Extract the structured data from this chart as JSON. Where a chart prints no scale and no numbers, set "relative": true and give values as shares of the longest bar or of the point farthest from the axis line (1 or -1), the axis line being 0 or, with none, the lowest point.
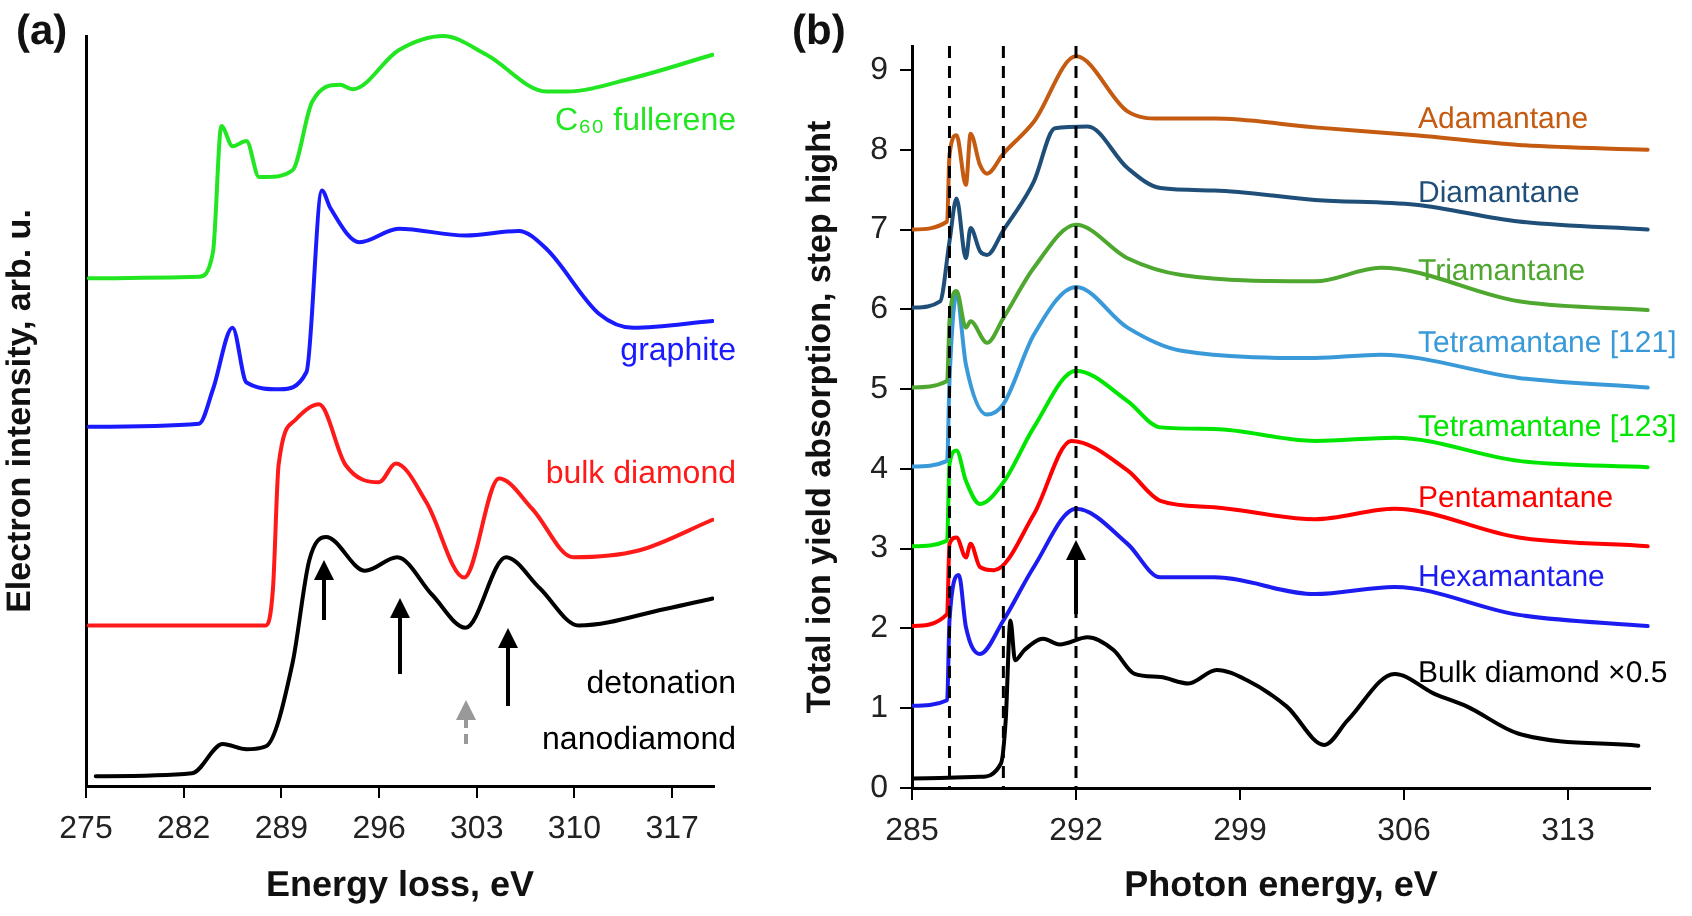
{
  "chart_data": [
    {
      "type": "line",
      "title": "(a)",
      "xlabel": "Energy loss, eV",
      "ylabel": "Electron intensity, arb. u.",
      "xlim": [
        275,
        320
      ],
      "xticks": [
        275,
        282,
        289,
        296,
        303,
        310,
        317
      ],
      "relative": true,
      "tick_labels": "x",
      "grid": false,
      "legend": false,
      "marker": "none",
      "line_style": "solid",
      "series": [
        {
          "name": "C₆₀ fullerene",
          "color": "#22e622",
          "x": [
            275.2,
            283.1,
            284.1,
            284.7,
            285.5,
            286.5,
            287.4,
            287.9,
            289.8,
            291.2,
            293.2,
            294.1,
            297.4,
            300.6,
            303.7,
            308.0,
            309.4,
            314.2,
            319.9
          ],
          "values": [
            0.677,
            0.679,
            0.712,
            0.88,
            0.853,
            0.86,
            0.812,
            0.812,
            0.821,
            0.912,
            0.935,
            0.929,
            0.981,
            1.0,
            0.975,
            0.926,
            0.926,
            0.944,
            0.975
          ]
        },
        {
          "name": "graphite",
          "color": "#1a1aff",
          "x": [
            275.2,
            283.1,
            284.1,
            285.5,
            286.5,
            288.9,
            290.8,
            291.9,
            292.5,
            294.6,
            297.4,
            302.2,
            306.0,
            308.0,
            311.8,
            314.2,
            319.9
          ],
          "values": [
            0.479,
            0.483,
            0.529,
            0.611,
            0.538,
            0.529,
            0.552,
            0.794,
            0.771,
            0.725,
            0.743,
            0.734,
            0.74,
            0.716,
            0.629,
            0.611,
            0.62
          ]
        },
        {
          "name": "bulk diamond",
          "color": "#ff1a1a",
          "x": [
            275.2,
            287.9,
            288.4,
            288.8,
            290.0,
            291.7,
            293.6,
            296.0,
            297.2,
            299.4,
            302.1,
            304.6,
            307.0,
            309.9,
            314.6,
            319.9
          ],
          "values": [
            0.214,
            0.214,
            0.264,
            0.428,
            0.488,
            0.509,
            0.428,
            0.405,
            0.43,
            0.378,
            0.278,
            0.41,
            0.369,
            0.305,
            0.314,
            0.355
          ]
        },
        {
          "name": "detonation nanodiamond",
          "color": "#000000",
          "x": [
            275.7,
            282.6,
            284.8,
            286.5,
            287.9,
            289.8,
            291.0,
            292.2,
            295.0,
            297.3,
            299.8,
            302.2,
            305.1,
            307.5,
            310.3,
            316.5,
            319.9
          ],
          "values": [
            0.013,
            0.017,
            0.056,
            0.049,
            0.053,
            0.164,
            0.301,
            0.332,
            0.287,
            0.305,
            0.255,
            0.211,
            0.305,
            0.264,
            0.214,
            0.236,
            0.25
          ]
        }
      ]
    },
    {
      "type": "line",
      "title": "(b)",
      "xlabel": "Photon energy, eV",
      "ylabel": "Total ion yield absorption, step hight",
      "xlim": [
        285,
        316.5
      ],
      "ylim": [
        0,
        9.3
      ],
      "xticks": [
        285,
        292,
        299,
        306,
        313
      ],
      "yticks": [
        0,
        1,
        2,
        3,
        4,
        5,
        6,
        7,
        8,
        9
      ],
      "grid": false,
      "legend": false,
      "marker": "none",
      "line_style": "solid",
      "ref_lines": [
        {
          "axis": "x",
          "value": 286.6,
          "color": "#000000",
          "line_style": "dashed"
        },
        {
          "axis": "x",
          "value": 288.9,
          "color": "#000000",
          "line_style": "dashed"
        },
        {
          "axis": "x",
          "value": 292,
          "color": "#000000",
          "line_style": "dashed"
        }
      ],
      "series": [
        {
          "name": "Adamantane",
          "color": "#c55a11",
          "x": [
            285.0,
            286.5,
            286.6,
            286.9,
            287.3,
            287.5,
            287.9,
            288.2,
            288.9,
            290.2,
            292.0,
            294.2,
            295.6,
            297.9,
            302.2,
            306.5,
            310.9,
            316.4
          ],
          "values": [
            7.0,
            7.1,
            7.93,
            8.18,
            7.56,
            8.2,
            7.81,
            7.7,
            7.95,
            8.35,
            9.17,
            8.48,
            8.39,
            8.39,
            8.28,
            8.18,
            8.06,
            8.0
          ]
        },
        {
          "name": "Diamantane",
          "color": "#1f4e79",
          "x": [
            285.0,
            286.2,
            286.6,
            286.9,
            287.3,
            287.5,
            287.9,
            288.2,
            288.9,
            290.2,
            291.1,
            292.5,
            294.2,
            295.6,
            297.9,
            302.2,
            306.5,
            310.9,
            316.4
          ],
          "values": [
            6.02,
            6.1,
            6.85,
            7.39,
            6.64,
            7.02,
            6.73,
            6.68,
            6.99,
            7.6,
            8.27,
            8.29,
            7.77,
            7.52,
            7.49,
            7.37,
            7.31,
            7.1,
            7.0
          ]
        },
        {
          "name": "Triamantane",
          "color": "#4ea72e",
          "x": [
            285.0,
            286.5,
            286.6,
            286.9,
            287.3,
            287.5,
            288.2,
            288.9,
            290.2,
            292.0,
            294.2,
            296.5,
            302.2,
            305.0,
            310.9,
            316.4
          ],
          "values": [
            5.02,
            5.1,
            5.85,
            6.23,
            5.77,
            5.85,
            5.58,
            5.89,
            6.52,
            7.06,
            6.64,
            6.43,
            6.35,
            6.52,
            6.1,
            5.99
          ]
        },
        {
          "name": "Tetramantane [121]",
          "color": "#3a9ad9",
          "x": [
            285.0,
            286.5,
            286.6,
            286.9,
            287.3,
            288.2,
            288.9,
            290.2,
            292.0,
            294.2,
            296.5,
            302.2,
            305.0,
            310.9,
            316.4
          ],
          "values": [
            4.03,
            4.1,
            5.1,
            6.18,
            5.31,
            4.68,
            4.81,
            5.68,
            6.28,
            5.77,
            5.48,
            5.39,
            5.43,
            5.14,
            5.02
          ]
        },
        {
          "name": "Tetramantane [123]",
          "color": "#00e600",
          "x": [
            285.0,
            286.5,
            286.6,
            286.9,
            287.3,
            287.9,
            288.9,
            290.2,
            292.0,
            294.2,
            295.6,
            297.9,
            302.2,
            305.6,
            310.9,
            316.4
          ],
          "values": [
            3.03,
            3.1,
            4.06,
            4.23,
            3.85,
            3.56,
            3.83,
            4.52,
            5.23,
            4.85,
            4.52,
            4.5,
            4.35,
            4.39,
            4.1,
            4.02
          ]
        },
        {
          "name": "Pentamantane",
          "color": "#ff0000",
          "x": [
            285.0,
            286.5,
            286.6,
            286.9,
            287.3,
            287.5,
            287.9,
            288.5,
            290.2,
            291.8,
            294.2,
            295.6,
            297.9,
            302.2,
            305.6,
            310.9,
            316.4
          ],
          "values": [
            2.03,
            2.18,
            3.06,
            3.14,
            2.89,
            3.06,
            2.77,
            2.73,
            3.43,
            4.35,
            3.98,
            3.6,
            3.52,
            3.37,
            3.5,
            3.14,
            3.03
          ]
        },
        {
          "name": "Hexamantane",
          "color": "#1c1cf0",
          "x": [
            285.0,
            286.5,
            286.6,
            287.0,
            287.3,
            287.9,
            288.9,
            290.2,
            292.0,
            294.2,
            295.6,
            297.9,
            302.2,
            305.6,
            310.9,
            316.4
          ],
          "values": [
            1.03,
            1.1,
            2.1,
            2.67,
            2.02,
            1.68,
            2.1,
            2.77,
            3.5,
            3.06,
            2.64,
            2.64,
            2.43,
            2.52,
            2.17,
            2.03
          ]
        },
        {
          "name": "Bulk diamond ×0.5",
          "color": "#000000",
          "x": [
            285.0,
            287.9,
            288.8,
            289.0,
            289.2,
            289.4,
            289.8,
            290.6,
            291.3,
            292.5,
            293.6,
            294.5,
            295.6,
            296.8,
            298.0,
            299.3,
            301.0,
            302.6,
            303.6,
            305.6,
            307.3,
            308.7,
            310.9,
            316.0
          ],
          "values": [
            0.12,
            0.14,
            0.31,
            0.85,
            2.1,
            1.6,
            1.73,
            1.87,
            1.8,
            1.89,
            1.73,
            1.43,
            1.39,
            1.31,
            1.48,
            1.35,
            1.02,
            0.54,
            0.85,
            1.43,
            1.18,
            1.02,
            0.68,
            0.53
          ]
        }
      ]
    }
  ]
}
